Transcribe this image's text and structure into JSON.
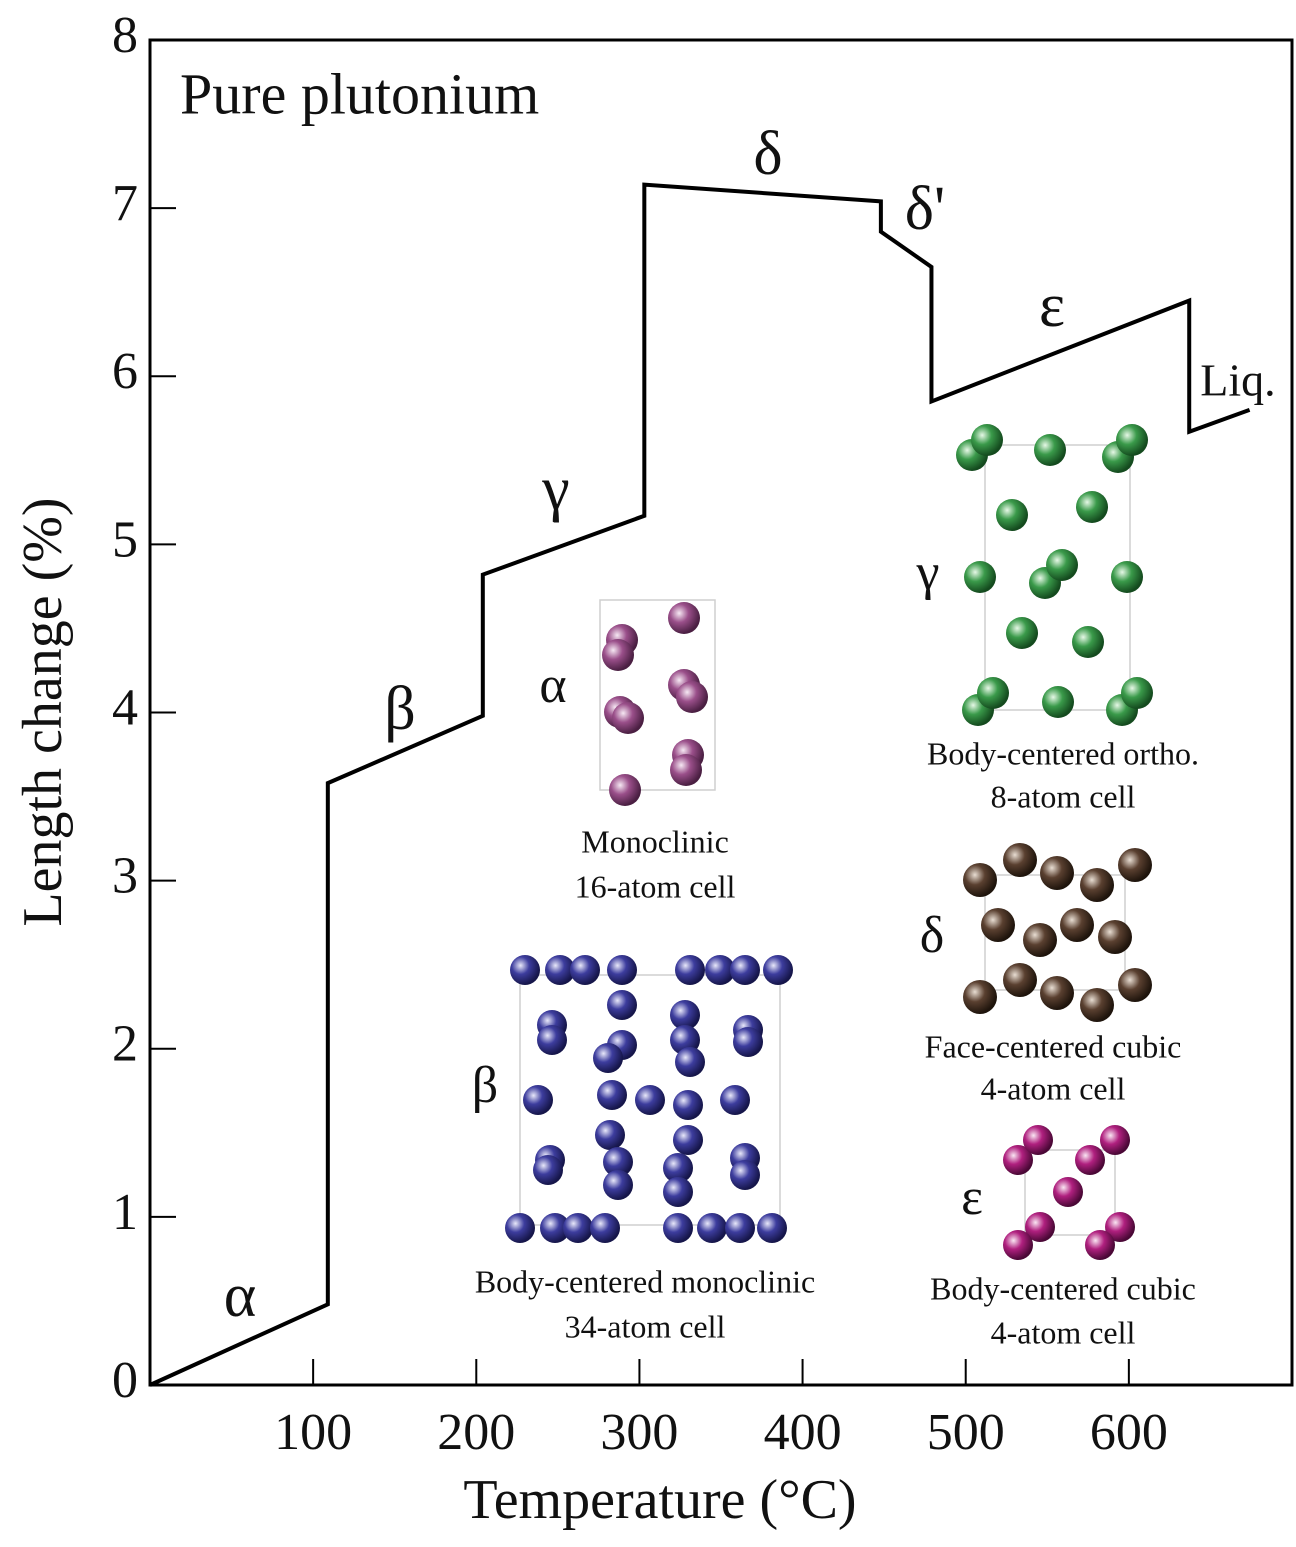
{
  "chart_data": {
    "type": "line",
    "title": "Pure plutonium",
    "x_label": "Temperature (°C)",
    "y_label": "Length change (%)",
    "x": [
      0,
      109,
      109,
      204,
      204,
      303,
      303,
      448,
      448,
      479,
      479,
      637,
      637,
      674
    ],
    "values": [
      0,
      0.48,
      3.58,
      3.98,
      4.82,
      5.17,
      7.14,
      7.04,
      6.86,
      6.65,
      5.85,
      6.45,
      5.67,
      5.8
    ],
    "color": "#000000",
    "xlim": [
      0,
      700
    ],
    "ylim": [
      0,
      8
    ],
    "xticks": [
      100,
      200,
      300,
      400,
      500,
      600
    ],
    "yticks": [
      0,
      1,
      2,
      3,
      4,
      5,
      6,
      7,
      8
    ],
    "annotations": [
      "α",
      "β",
      "γ",
      "δ",
      "δ'",
      "ε",
      "Liq.",
      "α",
      "Monoclinic",
      "16-atom cell",
      "β",
      "Body-centered monoclinic",
      "34-atom cell",
      "γ",
      "Body-centered ortho.",
      "8-atom cell",
      "δ",
      "Face-centered cubic",
      "4-atom cell",
      "ε",
      "Body-centered cubic",
      "4-atom cell"
    ]
  }
}
